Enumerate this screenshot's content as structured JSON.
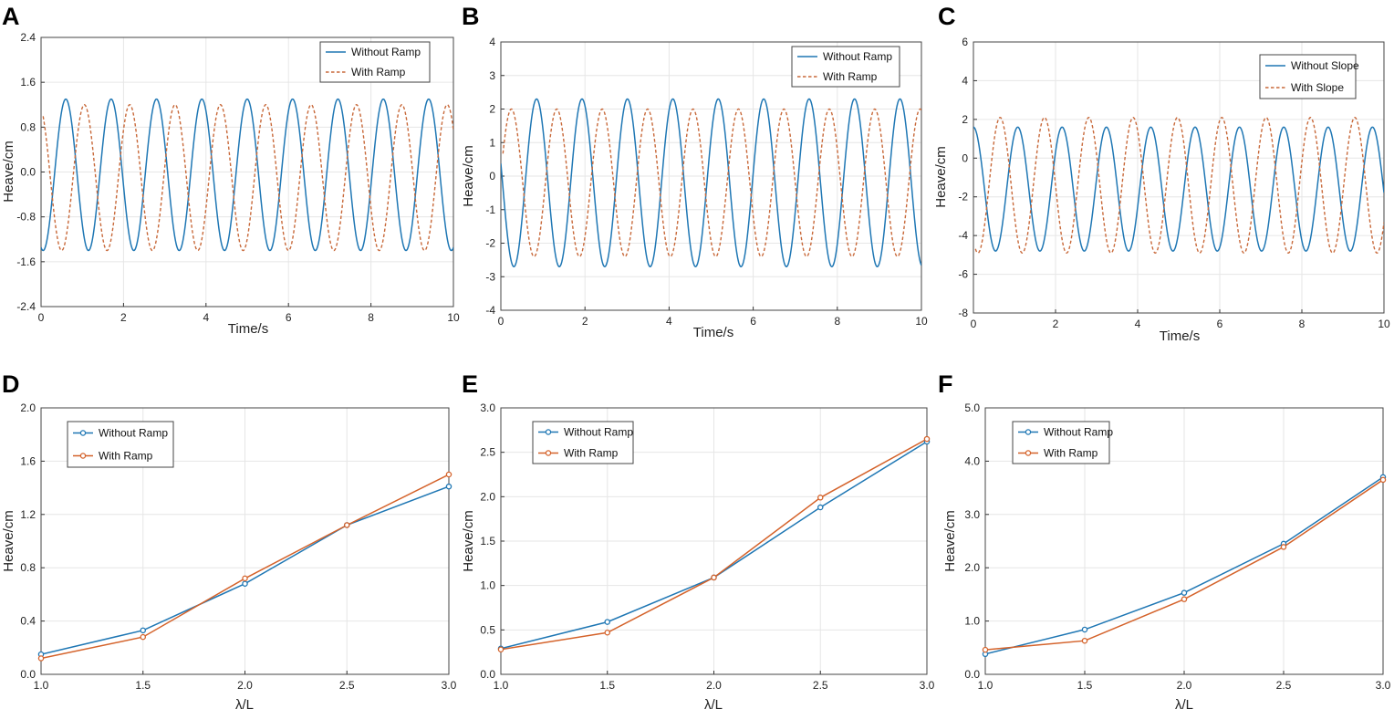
{
  "chart_data": [
    {
      "panel": "A",
      "type": "line",
      "xlabel": "Time/s",
      "ylabel": "Heave/cm",
      "xlim": [
        0,
        10
      ],
      "ylim": [
        -2.4,
        2.4
      ],
      "xticks": [
        "0",
        "2",
        "4",
        "6",
        "8",
        "10"
      ],
      "yticks": [
        "2.4",
        "1.6",
        "0.8",
        "0.0",
        "-0.8",
        "-1.6",
        "-2.4"
      ],
      "legend": "top-right",
      "grid": true,
      "series": [
        {
          "name": "Without Ramp",
          "style": "solid",
          "color": "#1f77b4",
          "period": 1.1,
          "amplitude": 1.35,
          "offset": -0.05,
          "phase_peak": 0.6,
          "x_start": 0
        },
        {
          "name": "With Ramp",
          "style": "dashed",
          "color": "#c8693a",
          "period": 1.1,
          "amplitude": 1.3,
          "offset": -0.1,
          "phase_peak": 1.05,
          "x_start": 0.05
        }
      ]
    },
    {
      "panel": "B",
      "type": "line",
      "xlabel": "Time/s",
      "ylabel": "Heave/cm",
      "xlim": [
        0,
        10
      ],
      "ylim": [
        -4,
        4
      ],
      "xticks": [
        "0",
        "2",
        "4",
        "6",
        "8",
        "10"
      ],
      "yticks": [
        "4",
        "3",
        "2",
        "1",
        "0",
        "-1",
        "-2",
        "-3",
        "-4"
      ],
      "legend": "top-right",
      "grid": true,
      "series": [
        {
          "name": "Without Ramp",
          "style": "solid",
          "color": "#1f77b4",
          "period": 1.08,
          "amplitude": 2.5,
          "offset": -0.2,
          "phase_peak": 0.85,
          "x_start": 0
        },
        {
          "name": "With Ramp",
          "style": "dashed",
          "color": "#c8693a",
          "period": 1.08,
          "amplitude": 2.2,
          "offset": -0.2,
          "phase_peak": 0.25,
          "x_start": 0.05
        }
      ]
    },
    {
      "panel": "C",
      "type": "line",
      "xlabel": "Time/s",
      "ylabel": "Heave/cm",
      "xlim": [
        0,
        10
      ],
      "ylim": [
        -8,
        6
      ],
      "xticks": [
        "0",
        "2",
        "4",
        "6",
        "8",
        "10"
      ],
      "yticks": [
        "6",
        "4",
        "2",
        "0",
        "-2",
        "-4",
        "-6",
        "-8"
      ],
      "legend": "top-right",
      "grid": true,
      "series": [
        {
          "name": "Without Slope",
          "style": "solid",
          "color": "#1f77b4",
          "period": 1.08,
          "amplitude": 3.2,
          "offset": -1.6,
          "phase_peak": 0.0,
          "x_start": 0
        },
        {
          "name": "With Slope",
          "style": "dashed",
          "color": "#c8693a",
          "period": 1.08,
          "amplitude": 3.5,
          "offset": -1.4,
          "phase_peak": 0.65,
          "x_start": 0.05
        }
      ]
    },
    {
      "panel": "D",
      "type": "line",
      "xlabel": "λ/L",
      "ylabel": "Heave/cm",
      "xlim": [
        1.0,
        3.0
      ],
      "ylim": [
        0.0,
        2.0
      ],
      "x": [
        1.0,
        1.5,
        2.0,
        2.5,
        3.0
      ],
      "xticks": [
        "1.0",
        "1.5",
        "2.0",
        "2.5",
        "3.0"
      ],
      "yticks": [
        "2.0",
        "1.6",
        "1.2",
        "0.8",
        "0.4",
        "0.0"
      ],
      "legend": "top-left",
      "grid": true,
      "series": [
        {
          "name": "Without Ramp",
          "color": "#1f77b4",
          "marker": "circle",
          "values": [
            0.15,
            0.33,
            0.68,
            1.12,
            1.41
          ]
        },
        {
          "name": "With Ramp",
          "color": "#d4622a",
          "marker": "circle",
          "values": [
            0.12,
            0.28,
            0.72,
            1.12,
            1.5
          ]
        }
      ]
    },
    {
      "panel": "E",
      "type": "line",
      "xlabel": "λ/L",
      "ylabel": "Heave/cm",
      "xlim": [
        1.0,
        3.0
      ],
      "ylim": [
        0.0,
        3.0
      ],
      "x": [
        1.0,
        1.5,
        2.0,
        2.5,
        3.0
      ],
      "xticks": [
        "1.0",
        "1.5",
        "2.0",
        "2.5",
        "3.0"
      ],
      "yticks": [
        "3.0",
        "2.5",
        "2.0",
        "1.5",
        "1.0",
        "0.5",
        "0.0"
      ],
      "legend": "top-left",
      "grid": true,
      "series": [
        {
          "name": "Without Ramp",
          "color": "#1f77b4",
          "marker": "circle",
          "values": [
            0.29,
            0.59,
            1.09,
            1.88,
            2.62
          ]
        },
        {
          "name": "With Ramp",
          "color": "#d4622a",
          "marker": "circle",
          "values": [
            0.28,
            0.47,
            1.09,
            1.99,
            2.65
          ]
        }
      ]
    },
    {
      "panel": "F",
      "type": "line",
      "xlabel": "λ/L",
      "ylabel": "Heave/cm",
      "xlim": [
        1.0,
        3.0
      ],
      "ylim": [
        0.0,
        5.0
      ],
      "x": [
        1.0,
        1.5,
        2.0,
        2.5,
        3.0
      ],
      "xticks": [
        "1.0",
        "1.5",
        "2.0",
        "2.5",
        "3.0"
      ],
      "yticks": [
        "5.0",
        "4.0",
        "3.0",
        "2.0",
        "1.0",
        "0.0"
      ],
      "legend": "top-left",
      "grid": true,
      "series": [
        {
          "name": "Without Ramp",
          "color": "#1f77b4",
          "marker": "circle",
          "values": [
            0.38,
            0.84,
            1.53,
            2.45,
            3.7
          ]
        },
        {
          "name": "With Ramp",
          "color": "#d4622a",
          "marker": "circle",
          "values": [
            0.46,
            0.63,
            1.41,
            2.39,
            3.65
          ]
        }
      ]
    }
  ]
}
